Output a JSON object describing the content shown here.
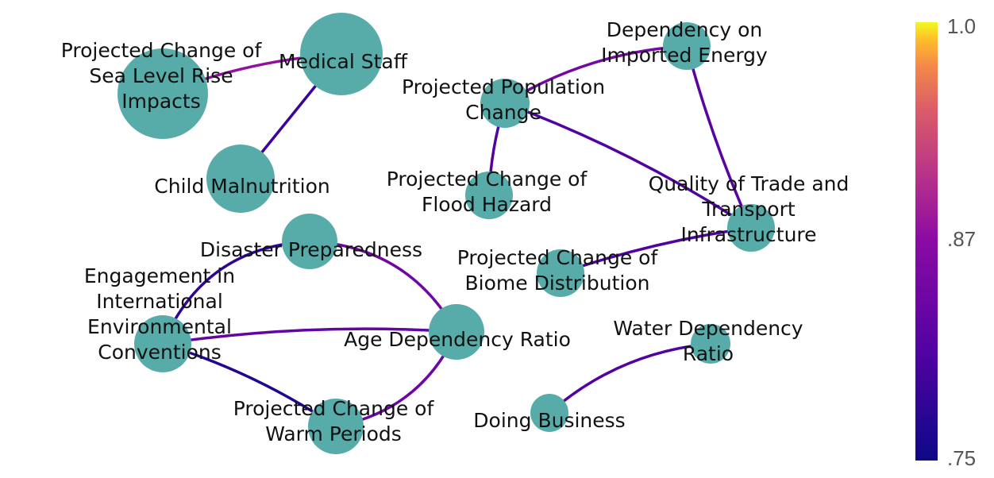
{
  "colorbar": {
    "max_label": "1.0",
    "mid_label": ".87",
    "min_label": ".75",
    "min_value": 0.75,
    "max_value": 1.0
  },
  "node_color": "#57aca9",
  "nodes": [
    {
      "id": "sea_level",
      "lines": [
        "Projected Change of",
        "Sea Level Rise",
        "Impacts"
      ]
    },
    {
      "id": "medical_staff",
      "lines": [
        "Medical Staff"
      ]
    },
    {
      "id": "child_malnutrition",
      "lines": [
        "Child Malnutrition"
      ]
    },
    {
      "id": "dependency_energy",
      "lines": [
        "Dependency on",
        "Imported Energy"
      ]
    },
    {
      "id": "population_change",
      "lines": [
        "Projected Population",
        "Change"
      ]
    },
    {
      "id": "flood_hazard",
      "lines": [
        "Projected Change of",
        "Flood Hazard"
      ]
    },
    {
      "id": "trade_transport",
      "lines": [
        "Quality of Trade and",
        "Transport",
        "Infrastructure"
      ]
    },
    {
      "id": "disaster_preparedness",
      "lines": [
        "Disaster Preparedness"
      ]
    },
    {
      "id": "biome_distribution",
      "lines": [
        "Projected Change of",
        "Biome Distribution"
      ]
    },
    {
      "id": "environmental_conventions",
      "lines": [
        "Engagement in",
        "International",
        "Environmental",
        "Conventions"
      ]
    },
    {
      "id": "age_dependency",
      "lines": [
        "Age Dependency Ratio"
      ]
    },
    {
      "id": "water_dependency",
      "lines": [
        "Water Dependency",
        "Ratio"
      ]
    },
    {
      "id": "warm_periods",
      "lines": [
        "Projected Change of",
        "Warm Periods"
      ]
    },
    {
      "id": "doing_business",
      "lines": [
        "Doing Business"
      ]
    }
  ],
  "edges": [
    {
      "source": "sea_level",
      "target": "medical_staff",
      "weight": 0.88
    },
    {
      "source": "medical_staff",
      "target": "child_malnutrition",
      "weight": 0.79
    },
    {
      "source": "population_change",
      "target": "dependency_energy",
      "weight": 0.85
    },
    {
      "source": "dependency_energy",
      "target": "trade_transport",
      "weight": 0.82
    },
    {
      "source": "population_change",
      "target": "trade_transport",
      "weight": 0.81
    },
    {
      "source": "population_change",
      "target": "flood_hazard",
      "weight": 0.81
    },
    {
      "source": "biome_distribution",
      "target": "trade_transport",
      "weight": 0.81
    },
    {
      "source": "environmental_conventions",
      "target": "disaster_preparedness",
      "weight": 0.78
    },
    {
      "source": "disaster_preparedness",
      "target": "age_dependency",
      "weight": 0.84
    },
    {
      "source": "environmental_conventions",
      "target": "age_dependency",
      "weight": 0.83
    },
    {
      "source": "environmental_conventions",
      "target": "warm_periods",
      "weight": 0.77
    },
    {
      "source": "age_dependency",
      "target": "warm_periods",
      "weight": 0.84
    },
    {
      "source": "doing_business",
      "target": "water_dependency",
      "weight": 0.81
    }
  ]
}
